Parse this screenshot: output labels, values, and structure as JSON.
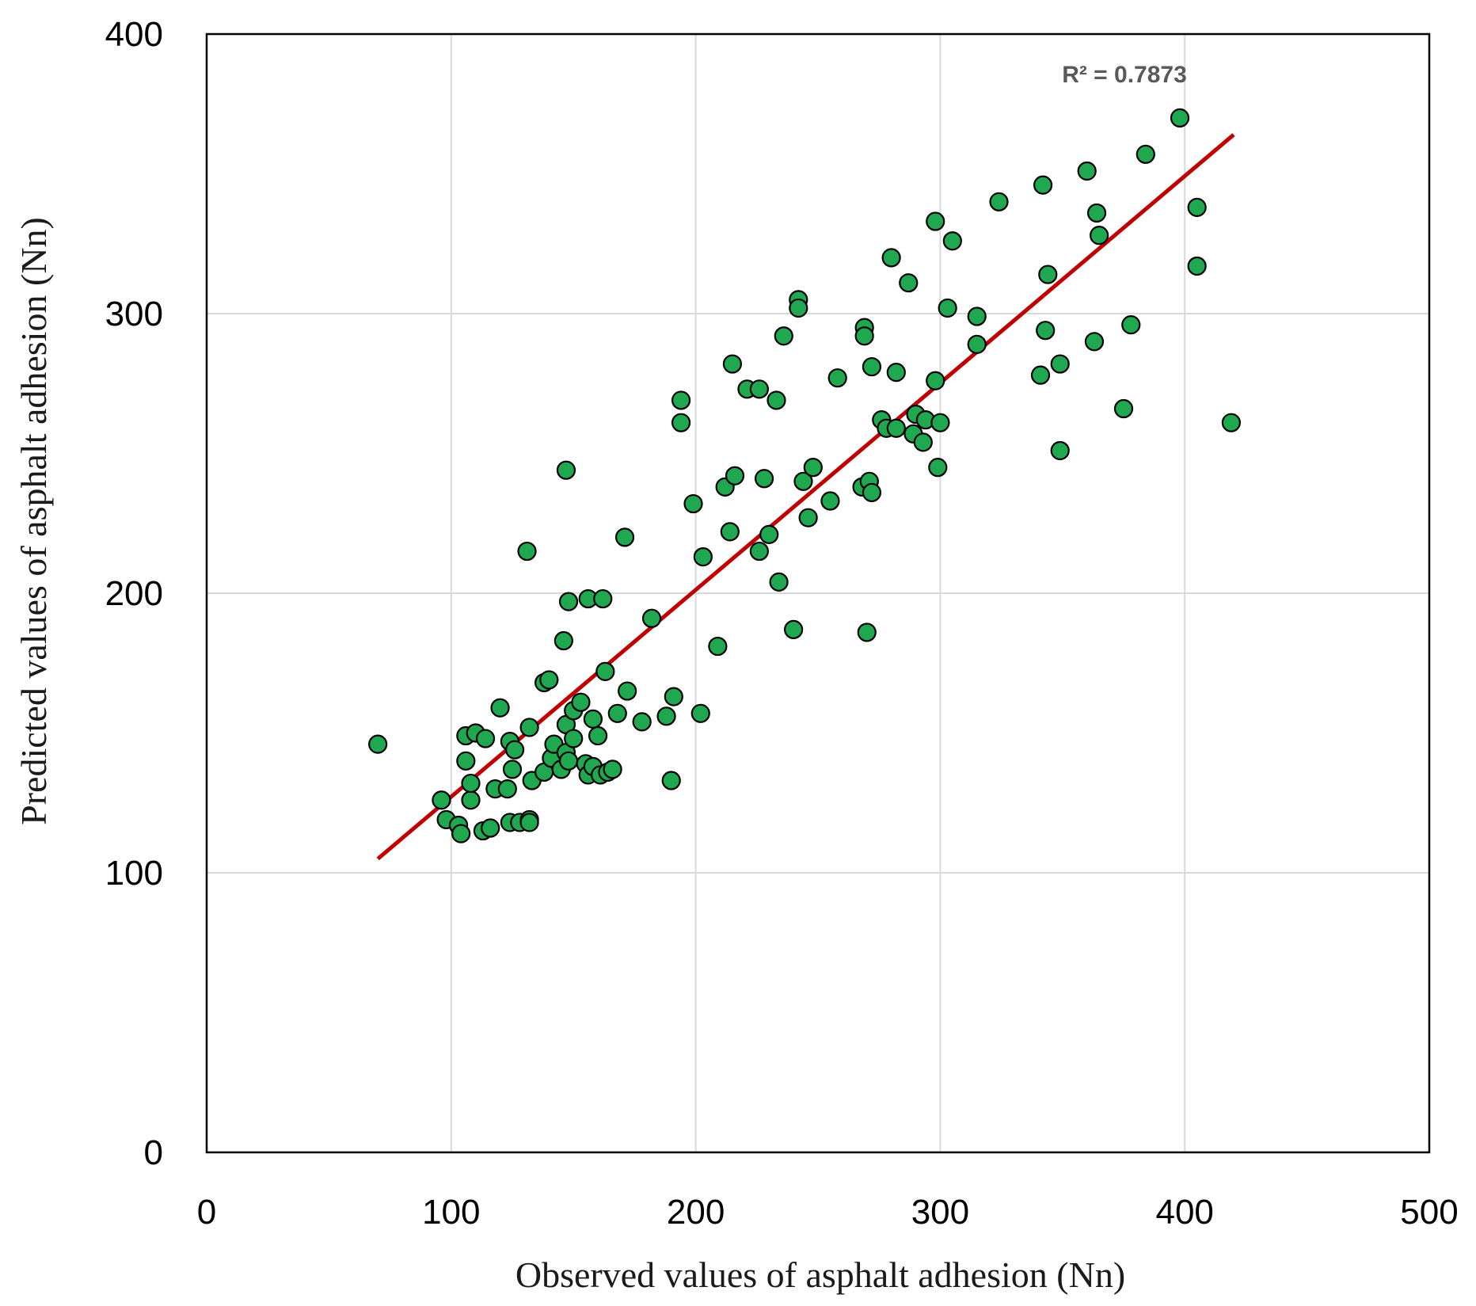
{
  "chart_data": {
    "type": "scatter",
    "title": "",
    "xlabel": "Observed values of asphalt adhesion (Nn)",
    "ylabel": "Predicted values of asphalt adhesion (Nn)",
    "xlim": [
      0,
      500
    ],
    "ylim": [
      0,
      400
    ],
    "x_ticks": [
      "0",
      "100",
      "200",
      "300",
      "400",
      "500"
    ],
    "y_ticks": [
      "0",
      "100",
      "200",
      "300",
      "400"
    ],
    "grid": true,
    "annotation": "R² = 0.7873",
    "trendline": {
      "x": [
        70,
        420
      ],
      "y": [
        105,
        364
      ]
    },
    "colors": {
      "point_fill": "#1fa84f",
      "point_stroke": "#000000",
      "trendline": "#c00000",
      "grid": "#d9d9d9"
    },
    "points": [
      [
        70,
        146
      ],
      [
        96,
        126
      ],
      [
        98,
        119
      ],
      [
        103,
        117
      ],
      [
        104,
        114
      ],
      [
        106,
        140
      ],
      [
        106,
        149
      ],
      [
        108,
        126
      ],
      [
        108,
        132
      ],
      [
        110,
        150
      ],
      [
        113,
        115
      ],
      [
        114,
        148
      ],
      [
        116,
        116
      ],
      [
        118,
        130
      ],
      [
        120,
        159
      ],
      [
        123,
        130
      ],
      [
        124,
        147
      ],
      [
        124,
        118
      ],
      [
        125,
        137
      ],
      [
        126,
        144
      ],
      [
        128,
        118
      ],
      [
        131,
        215
      ],
      [
        132,
        119
      ],
      [
        132,
        152
      ],
      [
        132,
        118
      ],
      [
        133,
        133
      ],
      [
        138,
        136
      ],
      [
        138,
        168
      ],
      [
        140,
        169
      ],
      [
        141,
        141
      ],
      [
        142,
        146
      ],
      [
        145,
        137
      ],
      [
        146,
        183
      ],
      [
        147,
        143
      ],
      [
        147,
        153
      ],
      [
        147,
        244
      ],
      [
        148,
        140
      ],
      [
        148,
        197
      ],
      [
        150,
        158
      ],
      [
        150,
        148
      ],
      [
        153,
        161
      ],
      [
        155,
        139
      ],
      [
        156,
        135
      ],
      [
        156,
        198
      ],
      [
        158,
        155
      ],
      [
        158,
        138
      ],
      [
        160,
        149
      ],
      [
        161,
        135
      ],
      [
        162,
        198
      ],
      [
        163,
        172
      ],
      [
        164,
        136
      ],
      [
        166,
        137
      ],
      [
        168,
        157
      ],
      [
        171,
        220
      ],
      [
        172,
        165
      ],
      [
        178,
        154
      ],
      [
        182,
        191
      ],
      [
        188,
        156
      ],
      [
        190,
        133
      ],
      [
        191,
        163
      ],
      [
        194,
        269
      ],
      [
        194,
        261
      ],
      [
        199,
        232
      ],
      [
        202,
        157
      ],
      [
        203,
        213
      ],
      [
        209,
        181
      ],
      [
        212,
        238
      ],
      [
        214,
        222
      ],
      [
        215,
        282
      ],
      [
        216,
        242
      ],
      [
        221,
        273
      ],
      [
        226,
        273
      ],
      [
        226,
        215
      ],
      [
        228,
        241
      ],
      [
        230,
        221
      ],
      [
        233,
        269
      ],
      [
        234,
        204
      ],
      [
        236,
        292
      ],
      [
        240,
        187
      ],
      [
        242,
        305
      ],
      [
        242,
        302
      ],
      [
        244,
        240
      ],
      [
        246,
        227
      ],
      [
        248,
        245
      ],
      [
        255,
        233
      ],
      [
        258,
        277
      ],
      [
        268,
        238
      ],
      [
        269,
        295
      ],
      [
        269,
        292
      ],
      [
        270,
        186
      ],
      [
        271,
        240
      ],
      [
        272,
        236
      ],
      [
        272,
        281
      ],
      [
        276,
        262
      ],
      [
        278,
        259
      ],
      [
        280,
        320
      ],
      [
        282,
        259
      ],
      [
        282,
        279
      ],
      [
        287,
        311
      ],
      [
        289,
        257
      ],
      [
        290,
        264
      ],
      [
        293,
        254
      ],
      [
        294,
        262
      ],
      [
        298,
        333
      ],
      [
        298,
        276
      ],
      [
        299,
        245
      ],
      [
        300,
        261
      ],
      [
        303,
        302
      ],
      [
        305,
        326
      ],
      [
        315,
        299
      ],
      [
        315,
        289
      ],
      [
        324,
        340
      ],
      [
        341,
        278
      ],
      [
        342,
        346
      ],
      [
        343,
        294
      ],
      [
        344,
        314
      ],
      [
        349,
        282
      ],
      [
        349,
        251
      ],
      [
        360,
        351
      ],
      [
        363,
        290
      ],
      [
        364,
        336
      ],
      [
        365,
        328
      ],
      [
        375,
        266
      ],
      [
        378,
        296
      ],
      [
        384,
        357
      ],
      [
        398,
        370
      ],
      [
        405,
        338
      ],
      [
        405,
        317
      ],
      [
        419,
        261
      ]
    ]
  }
}
